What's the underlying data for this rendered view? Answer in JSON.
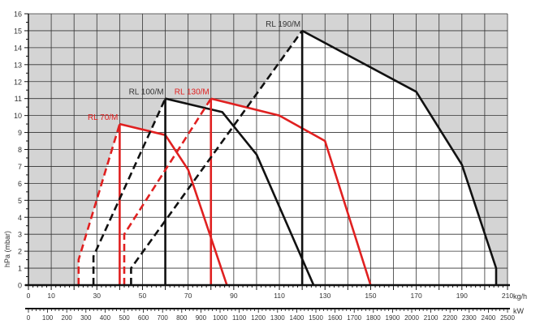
{
  "chart_data": {
    "type": "line",
    "title": "",
    "ylabel": "hPa (mbar)",
    "xlabel": "kg/h",
    "x2label": "kW",
    "xlim": [
      0,
      210
    ],
    "ylim": [
      0,
      16
    ],
    "x2lim": [
      0,
      2500
    ],
    "grid": true,
    "yticks": [
      0,
      1,
      2,
      3,
      4,
      5,
      6,
      7,
      8,
      9,
      10,
      11,
      12,
      13,
      14,
      15,
      16
    ],
    "xtick_labels": [
      0,
      10,
      30,
      50,
      70,
      90,
      110,
      130,
      150,
      170,
      190,
      210
    ],
    "x2tick_labels": [
      0,
      100,
      200,
      300,
      400,
      500,
      600,
      700,
      800,
      900,
      1000,
      1100,
      1200,
      1300,
      1400,
      1500,
      1600,
      1700,
      1800,
      1900,
      2000,
      2100,
      2200,
      2300,
      2400,
      2500
    ],
    "series": [
      {
        "name": "RL 70/M",
        "color": "#e02020",
        "dashed": [
          [
            22,
            0
          ],
          [
            22,
            1.5
          ],
          [
            40,
            9.5
          ]
        ],
        "vertical_x": 40,
        "solid": [
          [
            40,
            9.5
          ],
          [
            60,
            8.85
          ],
          [
            70,
            6.8
          ],
          [
            87,
            0
          ]
        ]
      },
      {
        "name": "RL 100/M",
        "color": "#111111",
        "dashed": [
          [
            28.5,
            0
          ],
          [
            28.5,
            1.7
          ],
          [
            60,
            11
          ]
        ],
        "vertical_x": 60,
        "solid": [
          [
            60,
            11
          ],
          [
            85,
            10.2
          ],
          [
            100,
            7.7
          ],
          [
            125,
            0
          ]
        ]
      },
      {
        "name": "RL 130/M",
        "color": "#e02020",
        "dashed": [
          [
            42,
            0
          ],
          [
            42,
            3
          ],
          [
            80,
            11
          ]
        ],
        "vertical_x": 80,
        "solid": [
          [
            80,
            11
          ],
          [
            110,
            10
          ],
          [
            130,
            8.5
          ],
          [
            150,
            0
          ]
        ]
      },
      {
        "name": "RL 190/M",
        "color": "#111111",
        "dashed": [
          [
            45,
            0
          ],
          [
            45,
            1
          ],
          [
            120,
            15
          ]
        ],
        "vertical_x": 120,
        "solid": [
          [
            120,
            15
          ],
          [
            170,
            11.4
          ],
          [
            190,
            7.1
          ],
          [
            205,
            1
          ],
          [
            205,
            0
          ]
        ]
      }
    ],
    "colors": {
      "background": "#d4d4d4",
      "grid": "#333333",
      "working_area": "#ffffff"
    }
  }
}
